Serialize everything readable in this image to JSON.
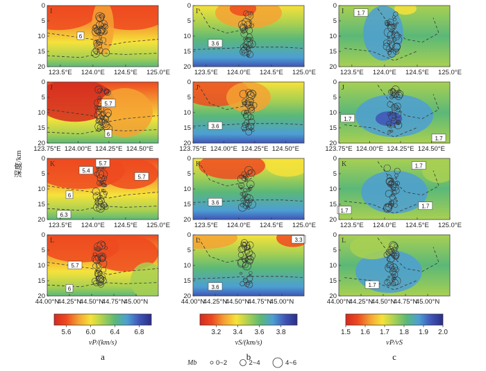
{
  "chart_data": {
    "type": "heatmap",
    "description_title": "",
    "y_axis": {
      "label": "深度/km",
      "ticks": [
        "0",
        "5",
        "10",
        "15",
        "20"
      ],
      "range": [
        0,
        20
      ],
      "inverted": true
    },
    "rows": [
      {
        "label": "I",
        "x_ticks": [
          "123.5°E",
          "124.0°E",
          "124.5°E",
          "125.0°E"
        ],
        "x_values": [
          123.5,
          124.0,
          124.5,
          125.0
        ],
        "x_range": [
          123.3,
          125.0
        ]
      },
      {
        "label": "J",
        "x_ticks": [
          "123.75°E",
          "124.00°E",
          "124.25°E",
          "124.50°E"
        ],
        "x_values": [
          123.75,
          124.0,
          124.25,
          124.5
        ],
        "x_range": [
          123.75,
          124.65
        ]
      },
      {
        "label": "K",
        "x_ticks": [
          "123.5°E",
          "124.0°E",
          "124.5°E",
          "125.0°E"
        ],
        "x_values": [
          123.5,
          124.0,
          124.5,
          125.0
        ],
        "x_range": [
          123.3,
          125.0
        ]
      },
      {
        "label": "L",
        "x_ticks": [
          "44.00°N",
          "44.25°N",
          "44.50°N",
          "44.75°N",
          "45.00°N"
        ],
        "x_values": [
          44.0,
          44.25,
          44.5,
          44.75,
          45.0
        ],
        "x_range": [
          44.0,
          45.25
        ]
      }
    ],
    "columns": [
      {
        "letter": "a",
        "quantity": "vP",
        "colorbar_title": "vP/(km/s)",
        "colorbar_ticks": [
          "5.6",
          "6.0",
          "6.4",
          "6.8"
        ],
        "range": [
          5.4,
          7.0
        ],
        "contour_labels": {
          "I": [
            "6"
          ],
          "J": [
            "5.7",
            "6"
          ],
          "K": [
            "5.4",
            "5.7",
            "5.7",
            "6",
            "6.3"
          ],
          "L": [
            "5.7",
            "6"
          ]
        }
      },
      {
        "letter": "b",
        "quantity": "vS",
        "colorbar_title": "vS/(km/s)",
        "colorbar_ticks": [
          "3.2",
          "3.4",
          "3.6",
          "3.8"
        ],
        "range": [
          3.05,
          3.95
        ],
        "contour_labels": {
          "I": [
            "3.6"
          ],
          "J": [
            "3.6"
          ],
          "K": [
            "3.6"
          ],
          "L": [
            "3.3",
            "3.6"
          ]
        }
      },
      {
        "letter": "c",
        "quantity": "vP/vS",
        "colorbar_title": "vP/vS",
        "colorbar_ticks": [
          "1.5",
          "1.6",
          "1.7",
          "1.8",
          "1.9",
          "2.0"
        ],
        "range": [
          1.5,
          2.0
        ],
        "contour_labels": {
          "I": [
            "1.7"
          ],
          "J": [
            "1.7",
            "1.7"
          ],
          "K": [
            "1.7",
            "1.7",
            "1.7"
          ],
          "L": [
            "1.7"
          ]
        }
      }
    ],
    "colormap": [
      "#d42a1f",
      "#ee4a20",
      "#f4a233",
      "#f6e23a",
      "#a8d052",
      "#5bb878",
      "#4d9fd3",
      "#3f55b6",
      "#2b2e86"
    ],
    "legend": {
      "title": "Mb",
      "items": [
        "0~2",
        "2~4",
        "4~6"
      ]
    }
  }
}
